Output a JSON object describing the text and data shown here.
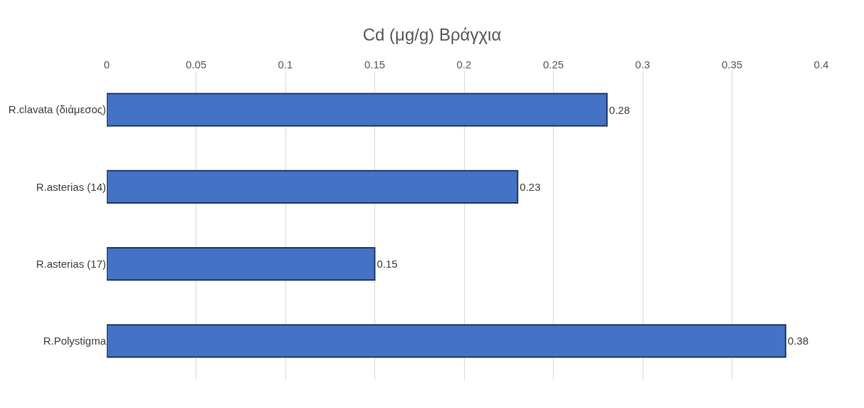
{
  "chart_data": {
    "type": "bar",
    "orientation": "horizontal",
    "title": "Cd (μg/g) Βράγχια",
    "categories": [
      "R.clavata (διάμεσος)",
      "R.asterias (14)",
      "R.asterias (17)",
      "R.Polystigma"
    ],
    "values": [
      0.28,
      0.23,
      0.15,
      0.38
    ],
    "color": "#4472c4",
    "xlim": [
      0,
      0.4
    ],
    "xticks": [
      0,
      0.05,
      0.1,
      0.15,
      0.2,
      0.25,
      0.3,
      0.35,
      0.4
    ],
    "grid": "x",
    "data_labels": true
  }
}
